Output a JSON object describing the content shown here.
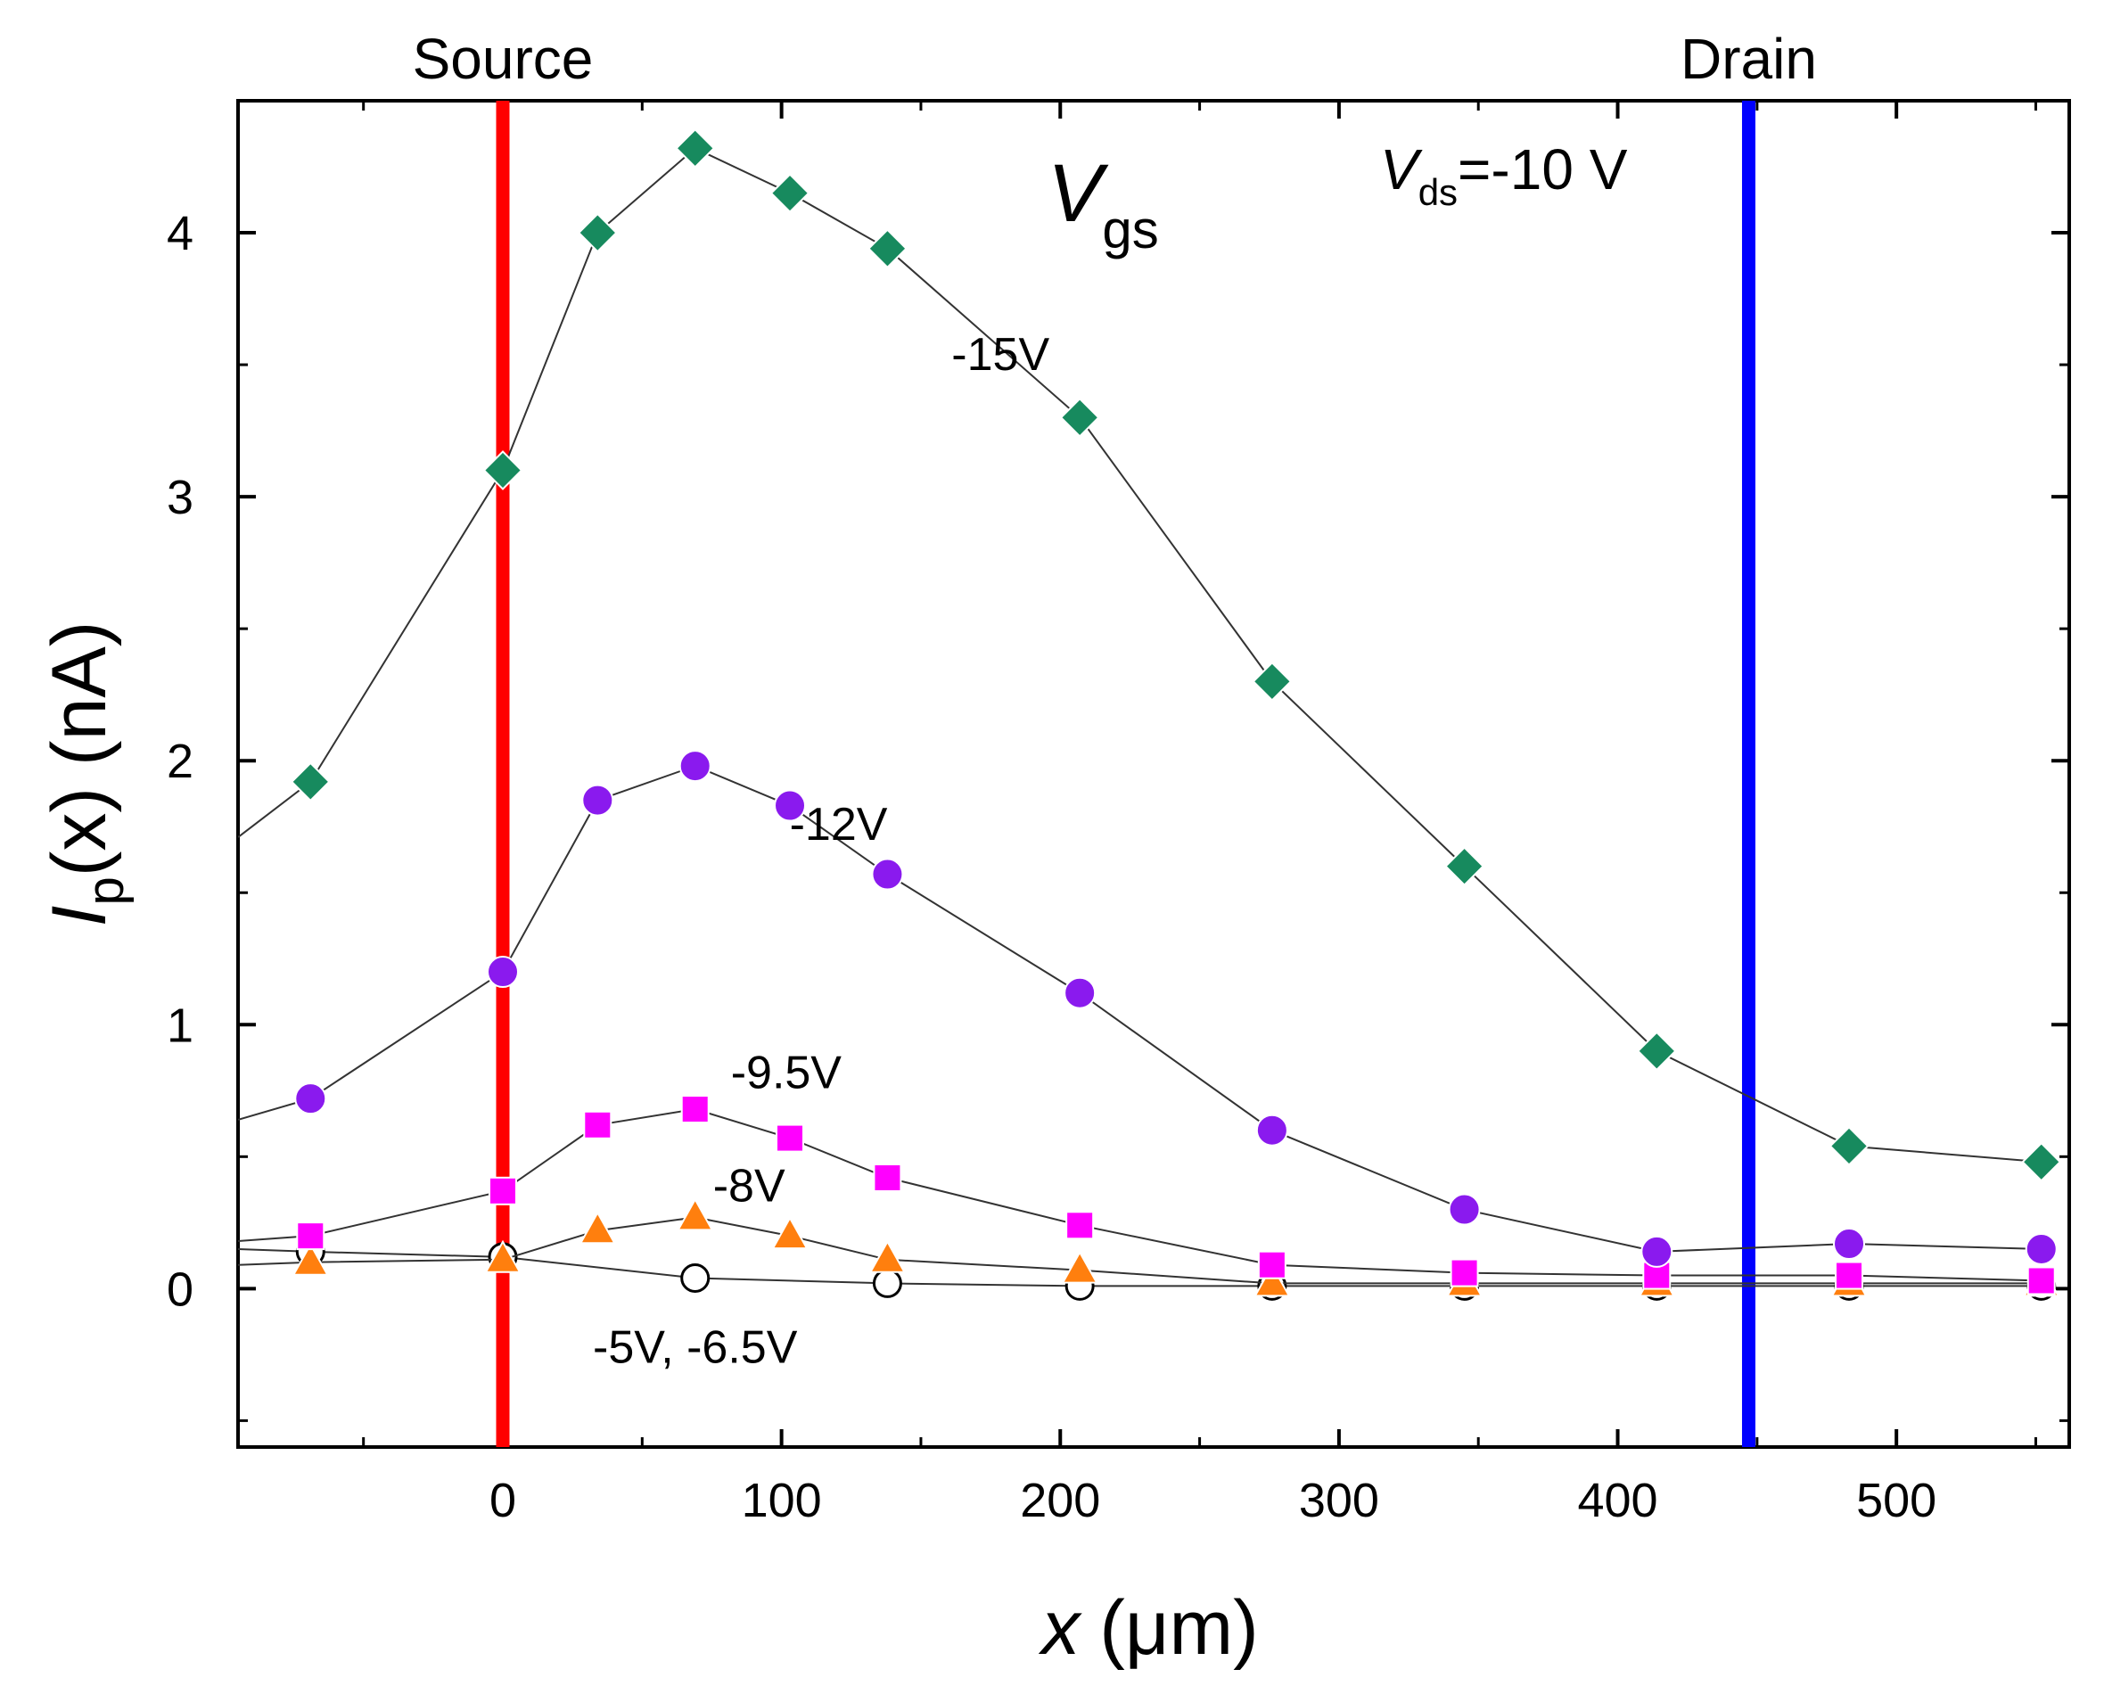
{
  "chart_data": {
    "type": "line",
    "title": "",
    "xlabel": {
      "main": "x",
      "unit": "(μm)"
    },
    "ylabel": {
      "main": "I",
      "sub": "p",
      "rest": "(x)  (nA)"
    },
    "xlim": [
      -95,
      562
    ],
    "ylim": [
      -0.6,
      4.5
    ],
    "xticks": [
      0,
      100,
      200,
      300,
      400,
      500
    ],
    "xtick_labels": [
      "0",
      "100",
      "200",
      "300",
      "400",
      "500"
    ],
    "yticks": [
      0,
      1,
      2,
      3,
      4
    ],
    "ytick_labels": [
      "0",
      "1",
      "2",
      "3",
      "4"
    ],
    "vertical_markers": [
      {
        "name": "source",
        "label": "Source",
        "x": 0,
        "color": "#ff0000"
      },
      {
        "name": "drain",
        "label": "Drain",
        "x": 447,
        "color": "#0000ff"
      }
    ],
    "annotations": {
      "vgs_main": "V",
      "vgs_sub": "gs",
      "vds_main": "V",
      "vds_sub": "ds",
      "vds_value": "=-10 V"
    },
    "series": [
      {
        "name": "-15V",
        "label": "-15V",
        "marker": "diamond",
        "color": "#178a5e",
        "x": [
          -69,
          0,
          34,
          69,
          103,
          138,
          207,
          276,
          345,
          414,
          483,
          552
        ],
        "y": [
          1.92,
          3.1,
          4.0,
          4.32,
          4.15,
          3.94,
          3.3,
          2.3,
          1.6,
          0.9,
          0.54,
          0.48
        ],
        "lead_in": [
          -95,
          1.71
        ]
      },
      {
        "name": "-12V",
        "label": "-12V",
        "marker": "circle",
        "color": "#8a1aee",
        "x": [
          -69,
          0,
          34,
          69,
          103,
          138,
          207,
          276,
          345,
          414,
          483,
          552
        ],
        "y": [
          0.72,
          1.2,
          1.85,
          1.98,
          1.83,
          1.57,
          1.12,
          0.6,
          0.3,
          0.14,
          0.17,
          0.15
        ],
        "lead_in": [
          -95,
          0.64
        ]
      },
      {
        "name": "-9.5V",
        "label": "-9.5V",
        "marker": "square",
        "color": "#ff00ff",
        "x": [
          -69,
          0,
          34,
          69,
          103,
          138,
          207,
          276,
          345,
          414,
          483,
          552
        ],
        "y": [
          0.2,
          0.37,
          0.62,
          0.68,
          0.57,
          0.42,
          0.24,
          0.09,
          0.06,
          0.05,
          0.05,
          0.03
        ],
        "lead_in": [
          -95,
          0.18
        ]
      },
      {
        "name": "-8V",
        "label": "-8V",
        "marker": "triangle",
        "color": "#ff7f0e",
        "x": [
          -69,
          0,
          34,
          69,
          103,
          138,
          207,
          276,
          345,
          414,
          483,
          552
        ],
        "y": [
          0.1,
          0.11,
          0.22,
          0.27,
          0.2,
          0.11,
          0.07,
          0.02,
          0.02,
          0.02,
          0.02,
          0.02
        ],
        "lead_in": [
          -95,
          0.09
        ]
      },
      {
        "name": "-5V, -6.5V",
        "label": "-5V, -6.5V",
        "marker": "open-circle",
        "color": "#000000",
        "x": [
          -69,
          0,
          69,
          138,
          207,
          276,
          345,
          414,
          483,
          552
        ],
        "y": [
          0.14,
          0.12,
          0.04,
          0.02,
          0.01,
          0.01,
          0.01,
          0.01,
          0.01,
          0.01
        ],
        "lead_in": [
          -95,
          0.15
        ]
      }
    ]
  }
}
